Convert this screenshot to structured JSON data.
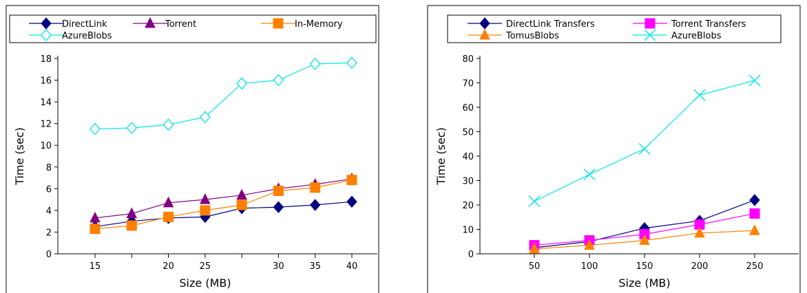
{
  "chart_data": [
    {
      "type": "line",
      "xlabel": "Size (MB)",
      "ylabel": "Time (sec)",
      "ylim": [
        0,
        18
      ],
      "yticks": [
        0,
        2,
        4,
        6,
        8,
        10,
        12,
        14,
        16,
        18
      ],
      "categories": [
        "15",
        "",
        "20",
        "25",
        "",
        "30",
        "35",
        "40"
      ],
      "legend_position": "top",
      "grid": false,
      "series": [
        {
          "name": "DirectLink",
          "color": "#000080",
          "marker": "diamond-filled",
          "values": [
            2.5,
            3.0,
            3.3,
            3.4,
            4.2,
            4.3,
            4.5,
            4.8
          ]
        },
        {
          "name": "Torrent",
          "color": "#800080",
          "marker": "triangle-filled",
          "values": [
            3.3,
            3.7,
            4.7,
            5.0,
            5.4,
            6.0,
            6.4,
            6.9
          ]
        },
        {
          "name": "In-Memory",
          "color": "#ff8000",
          "marker": "square-filled",
          "values": [
            2.3,
            2.6,
            3.4,
            4.0,
            4.5,
            5.8,
            6.1,
            6.8
          ]
        },
        {
          "name": "AzureBlobs",
          "color": "#00e5e5",
          "marker": "diamond-open",
          "values": [
            11.5,
            11.6,
            11.9,
            12.6,
            15.7,
            16.0,
            17.5,
            17.6
          ]
        }
      ]
    },
    {
      "type": "line",
      "xlabel": "Size (MB)",
      "ylabel": "Time (sec)",
      "ylim": [
        0,
        80
      ],
      "yticks": [
        0,
        10,
        20,
        30,
        40,
        50,
        60,
        70,
        80
      ],
      "categories": [
        "50",
        "100",
        "150",
        "200",
        "250"
      ],
      "legend_position": "top",
      "grid": false,
      "series": [
        {
          "name": "DirectLink Transfers",
          "color": "#000080",
          "marker": "diamond-filled",
          "values": [
            2.5,
            5.0,
            10.5,
            13.5,
            22.0
          ]
        },
        {
          "name": "Torrent Transfers",
          "color": "#ff00ff",
          "marker": "square-filled",
          "values": [
            3.5,
            5.5,
            8.0,
            12.0,
            16.5
          ]
        },
        {
          "name": "TomusBlobs",
          "color": "#ff8000",
          "marker": "triangle-filled",
          "values": [
            2.0,
            3.5,
            5.5,
            8.5,
            9.5
          ]
        },
        {
          "name": "AzureBlobs",
          "color": "#00e5e5",
          "marker": "cross",
          "values": [
            21.5,
            32.5,
            43.0,
            65.0,
            71.0
          ]
        }
      ]
    }
  ]
}
